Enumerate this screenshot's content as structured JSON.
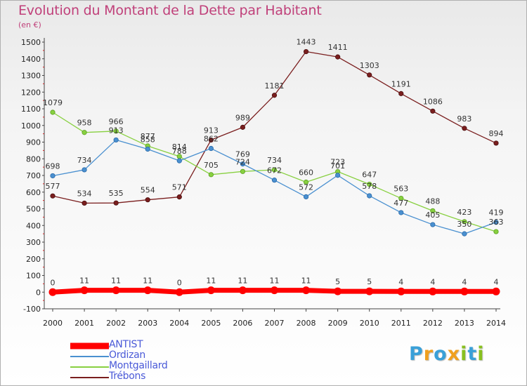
{
  "title": "Evolution du Montant de la Dette par Habitant",
  "unit": "(en €)",
  "logo": {
    "text": "Proxiti",
    "letters": [
      {
        "ch": "P",
        "color": "#3aa0d8"
      },
      {
        "ch": "r",
        "color": "#f0a020"
      },
      {
        "ch": "o",
        "color": "#3aa0d8"
      },
      {
        "ch": "x",
        "color": "#f0a020"
      },
      {
        "ch": "i",
        "color": "#88c020"
      },
      {
        "ch": "t",
        "color": "#3aa0d8"
      },
      {
        "ch": "i",
        "color": "#88c020"
      }
    ]
  },
  "chart_data": {
    "type": "line",
    "title": "Evolution du Montant de la Dette par Habitant",
    "subtitle": "(en €)",
    "x": [
      2000,
      2001,
      2002,
      2003,
      2004,
      2005,
      2006,
      2007,
      2008,
      2009,
      2010,
      2011,
      2012,
      2013,
      2014
    ],
    "ylim": [
      -100,
      1500
    ],
    "yticks": [
      -100,
      0,
      100,
      200,
      300,
      400,
      500,
      600,
      700,
      800,
      900,
      1000,
      1100,
      1200,
      1300,
      1400,
      1500
    ],
    "grid": false,
    "legend_position": "bottom-left",
    "series": [
      {
        "name": "ANTIST",
        "color": "#ff0000",
        "values": [
          0,
          11,
          11,
          11,
          0,
          11,
          11,
          11,
          11,
          5,
          5,
          4,
          4,
          4,
          4
        ]
      },
      {
        "name": "Ordizan",
        "color": "#4a90d0",
        "values": [
          698,
          734,
          913,
          858,
          788,
          862,
          769,
          672,
          572,
          701,
          578,
          477,
          405,
          350,
          419
        ]
      },
      {
        "name": "Montgaillard",
        "color": "#88d040",
        "values": [
          1079,
          958,
          966,
          877,
          814,
          705,
          724,
          734,
          660,
          723,
          647,
          563,
          488,
          423,
          363
        ]
      },
      {
        "name": "Trébons",
        "color": "#7a1e1e",
        "values": [
          577,
          534,
          535,
          554,
          571,
          913,
          989,
          1181,
          1443,
          1411,
          1303,
          1191,
          1086,
          983,
          894
        ]
      }
    ]
  }
}
